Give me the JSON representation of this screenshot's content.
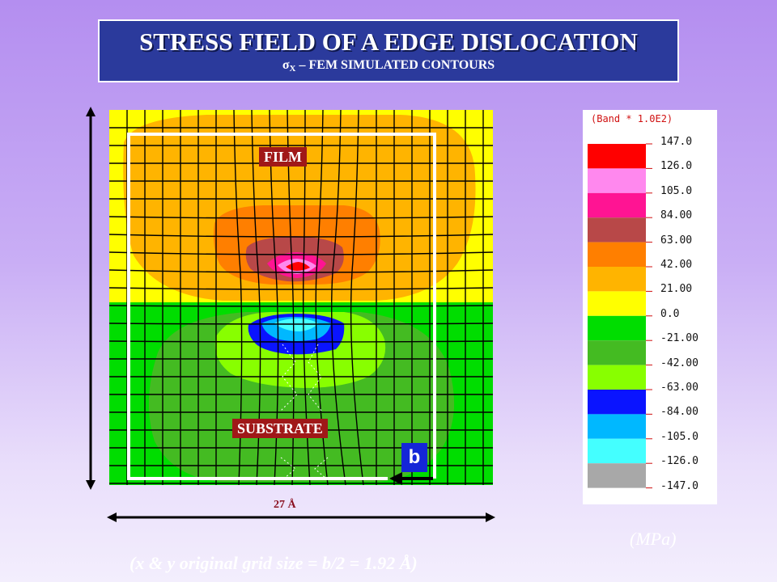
{
  "title": {
    "main": "STRESS FIELD OF A EDGE DISLOCATION",
    "sub_sigma": "σ",
    "sub_index": "X",
    "sub_rest": " – FEM SIMULATED CONTOURS"
  },
  "labels": {
    "film": "FILM",
    "substrate": "SUBSTRATE",
    "burgers": "b",
    "width": "27 Å",
    "unit": "(MPa)",
    "footnote": "(x & y original grid size = b/2 = 1.92 Å)"
  },
  "legend": {
    "title": "(Band * 1.0E2)",
    "values": [
      "147.0",
      "126.0",
      "105.0",
      "84.00",
      "63.00",
      "42.00",
      "21.00",
      "0.0",
      "-21.00",
      "-42.00",
      "-63.00",
      "-84.00",
      "-105.0",
      "-126.0",
      "-147.0"
    ],
    "colors": [
      "#ff0000",
      "#ff88ee",
      "#ff1493",
      "#b84848",
      "#ff7f00",
      "#ffb400",
      "#ffff00",
      "#00dd00",
      "#44bb22",
      "#88ff00",
      "#0a14ff",
      "#00b8ff",
      "#44ffff",
      "#a8a8a8"
    ]
  },
  "colors": {
    "title_bg": "#2b3a9c",
    "tag_bg": "#a01818",
    "burgers_bg": "#1426d8"
  }
}
